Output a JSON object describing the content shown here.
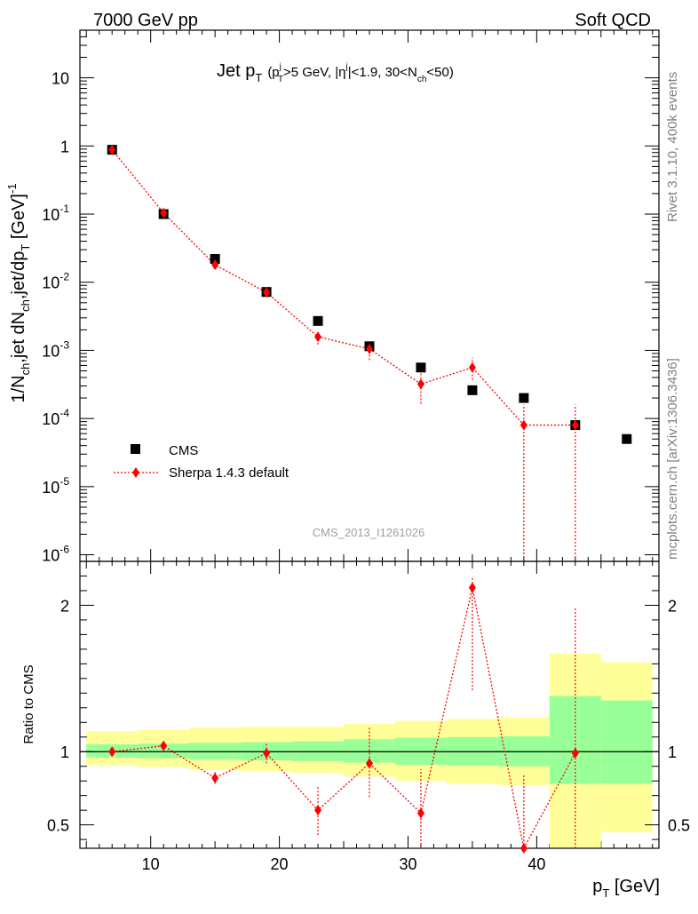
{
  "header": {
    "left": "7000 GeV pp",
    "right": "Soft QCD"
  },
  "side_labels": {
    "rivet": "Rivet 3.1.10,  400k events",
    "mcplots": "mcplots.cern.ch [arXiv:1306.3436]"
  },
  "colors": {
    "data": "#000000",
    "mc": "#ff0000",
    "band_inner": "#99ff99",
    "band_outer": "#ffff99"
  },
  "chart_data": [
    {
      "type": "scatter",
      "panel": "main",
      "title_main": "Jet p",
      "title_main_sub": "T",
      "title_cut": "(p",
      "title_cut_sub": "T",
      "title_cut_sup": "j",
      "title_cut_rest1": ">5 GeV, |η",
      "title_cut_sup2": "j",
      "title_cut_rest2": "|<1.9, 30<N",
      "title_cut_sub2": "ch",
      "title_cut_rest3": "<50)",
      "ylabel": "1/N_ch,jet dN_ch,jet/dp_T [GeV]^-1",
      "ylabel_parts": {
        "a": "1/N",
        "a_sub": "ch",
        "b": ",jet dN",
        "b_sub": "ch",
        "c": ",jet/dp",
        "c_sub": "T",
        "d": " [GeV]",
        "d_sup": "-1"
      },
      "yscale": "log",
      "ylim": [
        8e-07,
        50
      ],
      "xlim": [
        4.5,
        49.5
      ],
      "yticks": [
        {
          "value": 1e-06,
          "base": "10",
          "exp": "-6"
        },
        {
          "value": 1e-05,
          "base": "10",
          "exp": "-5"
        },
        {
          "value": 0.0001,
          "base": "10",
          "exp": "-4"
        },
        {
          "value": 0.001,
          "base": "10",
          "exp": "-3"
        },
        {
          "value": 0.01,
          "base": "10",
          "exp": "-2"
        },
        {
          "value": 0.1,
          "base": "10",
          "exp": "-1"
        },
        {
          "value": 1,
          "base": "1",
          "exp": ""
        },
        {
          "value": 10,
          "base": "10",
          "exp": ""
        }
      ],
      "legend_placement": "lower-left",
      "watermark": "CMS_2013_I1261026",
      "series": [
        {
          "name": "CMS",
          "marker": "square",
          "x": [
            7,
            11,
            15,
            19,
            23,
            27,
            31,
            35,
            39,
            43,
            47
          ],
          "y": [
            0.88,
            0.1,
            0.022,
            0.0072,
            0.0027,
            0.00115,
            0.00056,
            0.00026,
            0.0002,
            8e-05,
            5e-05
          ]
        },
        {
          "name": "Sherpa 1.4.3 default",
          "marker": "diamond",
          "line": "dotted",
          "x": [
            7,
            11,
            15,
            19,
            23,
            27,
            31,
            35,
            39,
            43
          ],
          "y": [
            0.88,
            0.104,
            0.018,
            0.0071,
            0.00158,
            0.00105,
            0.00032,
            0.00056,
            8e-05,
            8e-05
          ],
          "yerr_low": [
            0.86,
            0.1,
            0.0165,
            0.0066,
            0.00122,
            0.00072,
            0.000165,
            0.00037,
            8e-07,
            8e-07
          ],
          "yerr_high": [
            0.9,
            0.108,
            0.0195,
            0.0076,
            0.00195,
            0.00135,
            0.00047,
            0.00078,
            0.00016,
            0.00016
          ]
        }
      ]
    },
    {
      "type": "scatter",
      "panel": "ratio",
      "ylabel": "Ratio to CMS",
      "xlabel": "p",
      "xlabel_sub": "T",
      "xlabel_rest": " [GeV]",
      "ylim": [
        0.34,
        2.3
      ],
      "xlim": [
        4.5,
        49.5
      ],
      "xticks": [
        10,
        20,
        30,
        40
      ],
      "yticks": [
        0.5,
        1,
        2
      ],
      "ytick_labels": [
        "0.5",
        "1",
        "2"
      ],
      "reference_line": 1,
      "bands": {
        "edges": [
          5,
          9,
          13,
          17,
          21,
          25,
          29,
          33,
          37,
          41,
          45,
          49
        ],
        "inner_low": [
          0.96,
          0.955,
          0.945,
          0.94,
          0.935,
          0.925,
          0.91,
          0.905,
          0.9,
          0.78,
          0.78
        ],
        "inner_high": [
          1.05,
          1.055,
          1.06,
          1.065,
          1.07,
          1.085,
          1.095,
          1.1,
          1.105,
          1.38,
          1.35
        ],
        "outer_low": [
          0.905,
          0.895,
          0.875,
          0.865,
          0.855,
          0.83,
          0.8,
          0.78,
          0.77,
          0.34,
          0.45
        ],
        "outer_high": [
          1.14,
          1.15,
          1.165,
          1.17,
          1.17,
          1.19,
          1.21,
          1.225,
          1.235,
          1.67,
          1.61
        ]
      },
      "series": [
        {
          "name": "Sherpa 1.4.3 default",
          "marker": "diamond",
          "x": [
            7,
            11,
            15,
            19,
            23,
            27,
            31,
            35,
            39,
            43
          ],
          "y": [
            1.0,
            1.04,
            0.82,
            0.99,
            0.6,
            0.92,
            0.58,
            2.12,
            0.34,
            0.99
          ],
          "yerr_low": [
            0.99,
            1.02,
            0.78,
            0.92,
            0.43,
            0.69,
            0.3,
            1.42,
            0.01,
            0.01
          ],
          "yerr_high": [
            1.01,
            1.06,
            0.86,
            1.06,
            0.76,
            1.17,
            0.88,
            2.19,
            0.85,
            1.98
          ]
        }
      ]
    }
  ]
}
